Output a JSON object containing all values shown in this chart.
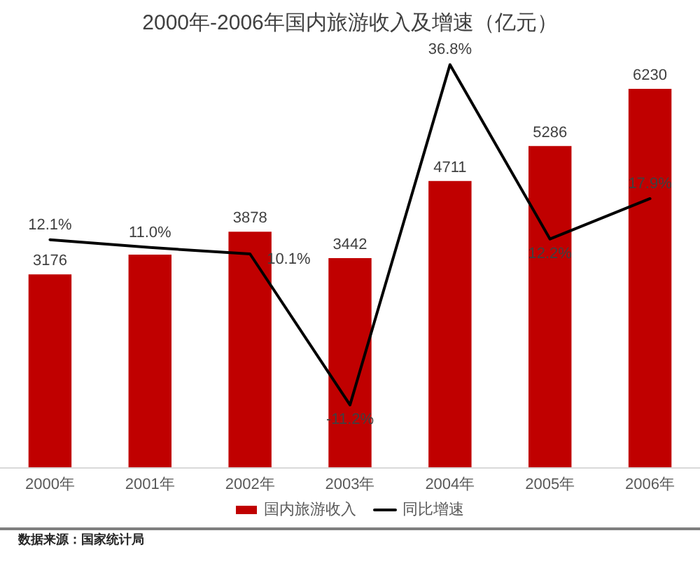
{
  "chart_data": {
    "type": "bar",
    "title": "2000年-2006年国内旅游收入及增速（亿元）",
    "categories": [
      "2000年",
      "2001年",
      "2002年",
      "2003年",
      "2004年",
      "2005年",
      "2006年"
    ],
    "series": [
      {
        "name": "国内旅游收入",
        "color": "#c00000",
        "values": [
          3176,
          3500,
          3878,
          3442,
          4711,
          5286,
          6230
        ],
        "value_labels": [
          "3176",
          null,
          "3878",
          "3442",
          "4711",
          "5286",
          "6230"
        ]
      },
      {
        "name": "同比增速",
        "type": "line",
        "axis": "y2",
        "color": "#000000",
        "values": [
          12.1,
          11.0,
          10.1,
          -11.2,
          36.8,
          12.2,
          17.9
        ],
        "value_labels": [
          "12.1%",
          "11.0%",
          "10.1%",
          "-11.2%",
          "36.8%",
          "12.2%",
          "17.9%"
        ]
      }
    ],
    "legend": "bottom",
    "tick_labels": "x",
    "marker": "none",
    "line_style": "solid",
    "annotations": [
      "数据来源：国家统计局"
    ]
  }
}
